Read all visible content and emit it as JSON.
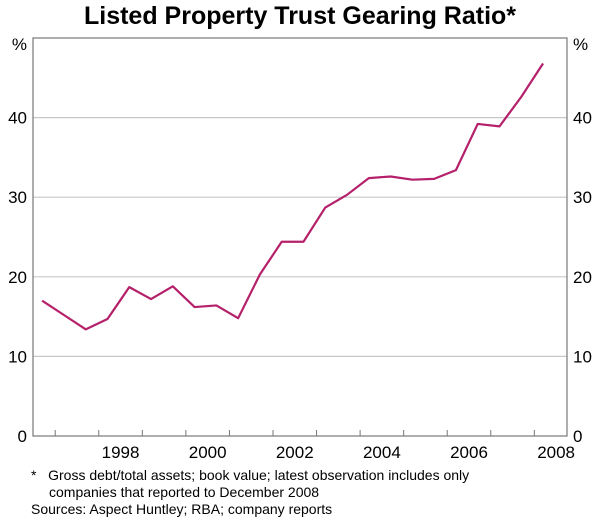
{
  "chart_data": {
    "type": "line",
    "title": "Listed Property Trust Gearing Ratio*",
    "ylabel_left": "%",
    "ylabel_right": "%",
    "ylim": [
      0,
      50
    ],
    "yticks": [
      0,
      10,
      20,
      30,
      40
    ],
    "xlim": [
      1996.49,
      2008.75
    ],
    "xticks": [
      1998,
      2000,
      2002,
      2004,
      2006,
      2008
    ],
    "grid": true,
    "series": [
      {
        "name": "Gearing ratio",
        "color": "#b5206a",
        "x": [
          1996.7,
          1997.2,
          1997.7,
          1998.2,
          1998.7,
          1999.2,
          1999.7,
          2000.2,
          2000.7,
          2001.2,
          2001.7,
          2002.2,
          2002.7,
          2003.2,
          2003.7,
          2004.2,
          2004.7,
          2005.2,
          2005.7,
          2006.2,
          2006.7,
          2007.2,
          2007.7,
          2008.2
        ],
        "values": [
          17.0,
          15.2,
          13.4,
          14.7,
          18.7,
          17.2,
          18.8,
          16.2,
          16.4,
          14.8,
          20.3,
          24.4,
          24.4,
          28.7,
          30.3,
          32.4,
          32.6,
          32.2,
          32.3,
          33.4,
          39.2,
          38.9,
          42.6,
          46.8
        ]
      }
    ]
  },
  "notes": {
    "star": "*",
    "line1": "Gross debt/total assets; book value; latest observation includes only",
    "line2": "companies that reported to December 2008",
    "sources": "Sources: Aspect Huntley; RBA; company reports"
  }
}
